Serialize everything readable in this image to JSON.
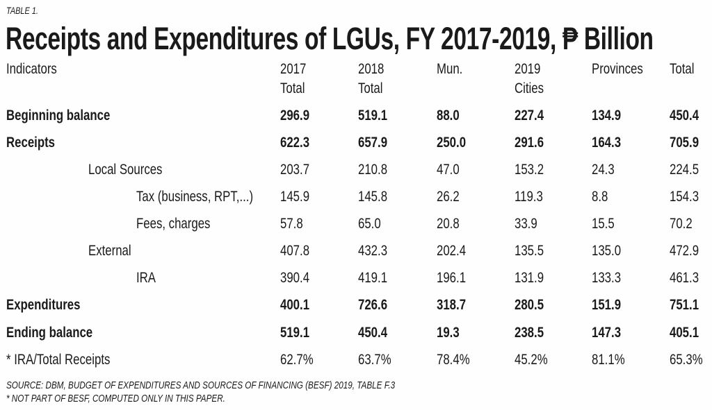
{
  "table_label": "TABLE 1.",
  "title": "Receipts and Expenditures of LGUs, FY 2017-2019, ₱ Billion",
  "headers": [
    {
      "line1": "Indicators",
      "line2": ""
    },
    {
      "line1": "2017",
      "line2": "Total"
    },
    {
      "line1": "2018",
      "line2": "Total"
    },
    {
      "line1": "Mun.",
      "line2": ""
    },
    {
      "line1": "2019",
      "line2": "Cities"
    },
    {
      "line1": "Provinces",
      "line2": ""
    },
    {
      "line1": "Total",
      "line2": ""
    }
  ],
  "rows": [
    {
      "label": "Beginning balance",
      "bold": true,
      "indent": 0,
      "values": [
        "296.9",
        "519.1",
        "88.0",
        "227.4",
        "134.9",
        "450.4"
      ]
    },
    {
      "label": "Receipts",
      "bold": true,
      "indent": 0,
      "values": [
        "622.3",
        "657.9",
        "250.0",
        "291.6",
        "164.3",
        "705.9"
      ]
    },
    {
      "label": "Local Sources",
      "bold": false,
      "indent": 1,
      "values": [
        "203.7",
        "210.8",
        "47.0",
        "153.2",
        "24.3",
        "224.5"
      ]
    },
    {
      "label": "Tax (business, RPT,...)",
      "bold": false,
      "indent": 2,
      "values": [
        "145.9",
        "145.8",
        "26.2",
        "119.3",
        "8.8",
        "154.3"
      ]
    },
    {
      "label": "Fees, charges",
      "bold": false,
      "indent": 2,
      "values": [
        "57.8",
        "65.0",
        "20.8",
        "33.9",
        "15.5",
        "70.2"
      ]
    },
    {
      "label": "External",
      "bold": false,
      "indent": 1,
      "values": [
        "407.8",
        "432.3",
        "202.4",
        "135.5",
        "135.0",
        "472.9"
      ]
    },
    {
      "label": "IRA",
      "bold": false,
      "indent": 2,
      "values": [
        "390.4",
        "419.1",
        "196.1",
        "131.9",
        "133.3",
        "461.3"
      ]
    },
    {
      "label": "Expenditures",
      "bold": true,
      "indent": 0,
      "values": [
        "400.1",
        "726.6",
        "318.7",
        "280.5",
        "151.9",
        "751.1"
      ]
    },
    {
      "label": "Ending balance",
      "bold": true,
      "indent": 0,
      "values": [
        "519.1",
        "450.4",
        "19.3",
        "238.5",
        "147.3",
        "405.1"
      ]
    },
    {
      "label": "* IRA/Total Receipts",
      "bold": false,
      "indent": 0,
      "values": [
        "62.7%",
        "63.7%",
        "78.4%",
        "45.2%",
        "81.1%",
        "65.3%"
      ]
    }
  ],
  "footnotes": [
    "SOURCE: DBM, BUDGET OF EXPENDITURES AND SOURCES OF FINANCING (BESF) 2019, TABLE F.3",
    "* NOT PART OF BESF, COMPUTED ONLY IN THIS PAPER."
  ]
}
